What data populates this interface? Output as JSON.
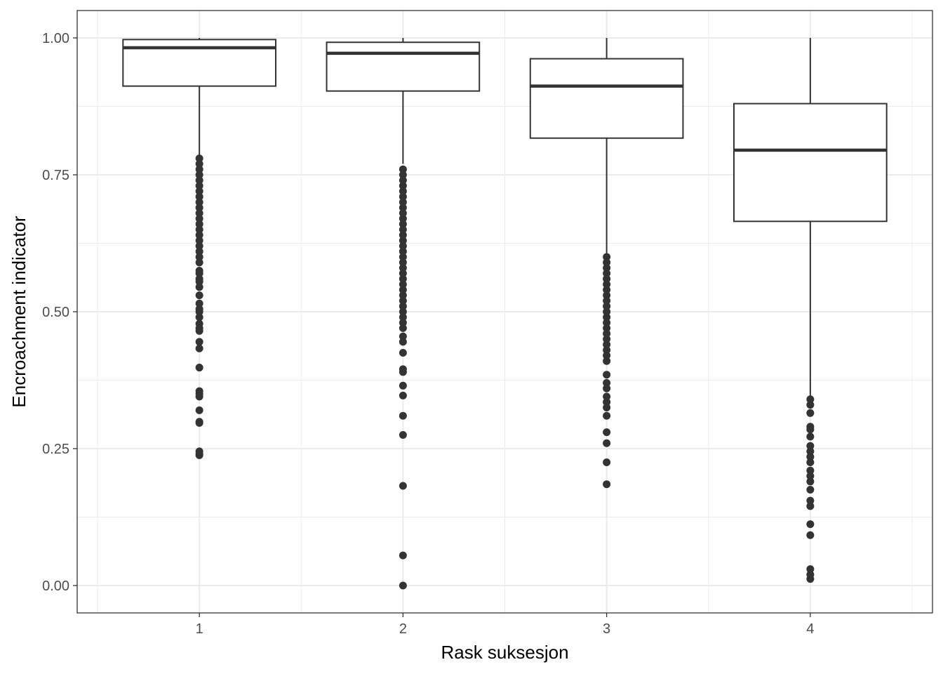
{
  "chart_data": {
    "type": "box",
    "title": "",
    "xlabel": "Rask suksesjon",
    "ylabel": "Encroachment indicator",
    "categories": [
      "1",
      "2",
      "3",
      "4"
    ],
    "ylim": [
      -0.05,
      1.05
    ],
    "y_ticks": [
      {
        "value": 0.0,
        "label": "0.00"
      },
      {
        "value": 0.25,
        "label": "0.25"
      },
      {
        "value": 0.5,
        "label": "0.50"
      },
      {
        "value": 0.75,
        "label": "0.75"
      },
      {
        "value": 1.0,
        "label": "1.00"
      }
    ],
    "y_minor_ticks": [
      0.125,
      0.375,
      0.625,
      0.875
    ],
    "grid": true,
    "boxes": [
      {
        "category": "1",
        "whisker_low": 0.785,
        "q1": 0.912,
        "median": 0.982,
        "q3": 0.997,
        "whisker_high": 1.0,
        "outliers": [
          0.24,
          0.238,
          0.245,
          0.297,
          0.299,
          0.32,
          0.345,
          0.35,
          0.355,
          0.398,
          0.433,
          0.445,
          0.465,
          0.47,
          0.478,
          0.49,
          0.5,
          0.505,
          0.515,
          0.53,
          0.545,
          0.555,
          0.56,
          0.57,
          0.575,
          0.59,
          0.6,
          0.61,
          0.62,
          0.63,
          0.64,
          0.65,
          0.66,
          0.67,
          0.68,
          0.69,
          0.7,
          0.71,
          0.72,
          0.73,
          0.74,
          0.75,
          0.76,
          0.77,
          0.78
        ]
      },
      {
        "category": "2",
        "whisker_low": 0.77,
        "q1": 0.903,
        "median": 0.972,
        "q3": 0.992,
        "whisker_high": 1.0,
        "outliers": [
          0.0,
          0.055,
          0.182,
          0.275,
          0.31,
          0.347,
          0.365,
          0.39,
          0.395,
          0.425,
          0.445,
          0.455,
          0.47,
          0.48,
          0.49,
          0.5,
          0.51,
          0.52,
          0.53,
          0.54,
          0.55,
          0.56,
          0.57,
          0.58,
          0.59,
          0.6,
          0.61,
          0.62,
          0.63,
          0.64,
          0.65,
          0.66,
          0.67,
          0.68,
          0.69,
          0.7,
          0.71,
          0.72,
          0.73,
          0.74,
          0.75,
          0.76
        ]
      },
      {
        "category": "3",
        "whisker_low": 0.6,
        "q1": 0.817,
        "median": 0.912,
        "q3": 0.962,
        "whisker_high": 1.0,
        "outliers": [
          0.185,
          0.225,
          0.26,
          0.28,
          0.31,
          0.325,
          0.335,
          0.345,
          0.36,
          0.37,
          0.385,
          0.41,
          0.42,
          0.43,
          0.44,
          0.45,
          0.46,
          0.47,
          0.48,
          0.49,
          0.5,
          0.51,
          0.52,
          0.53,
          0.54,
          0.55,
          0.56,
          0.57,
          0.58,
          0.59,
          0.6
        ]
      },
      {
        "category": "4",
        "whisker_low": 0.34,
        "q1": 0.665,
        "median": 0.795,
        "q3": 0.88,
        "whisker_high": 1.0,
        "outliers": [
          0.012,
          0.02,
          0.03,
          0.092,
          0.112,
          0.145,
          0.155,
          0.175,
          0.19,
          0.2,
          0.21,
          0.225,
          0.235,
          0.245,
          0.255,
          0.272,
          0.285,
          0.29,
          0.315,
          0.33,
          0.34
        ]
      }
    ]
  }
}
